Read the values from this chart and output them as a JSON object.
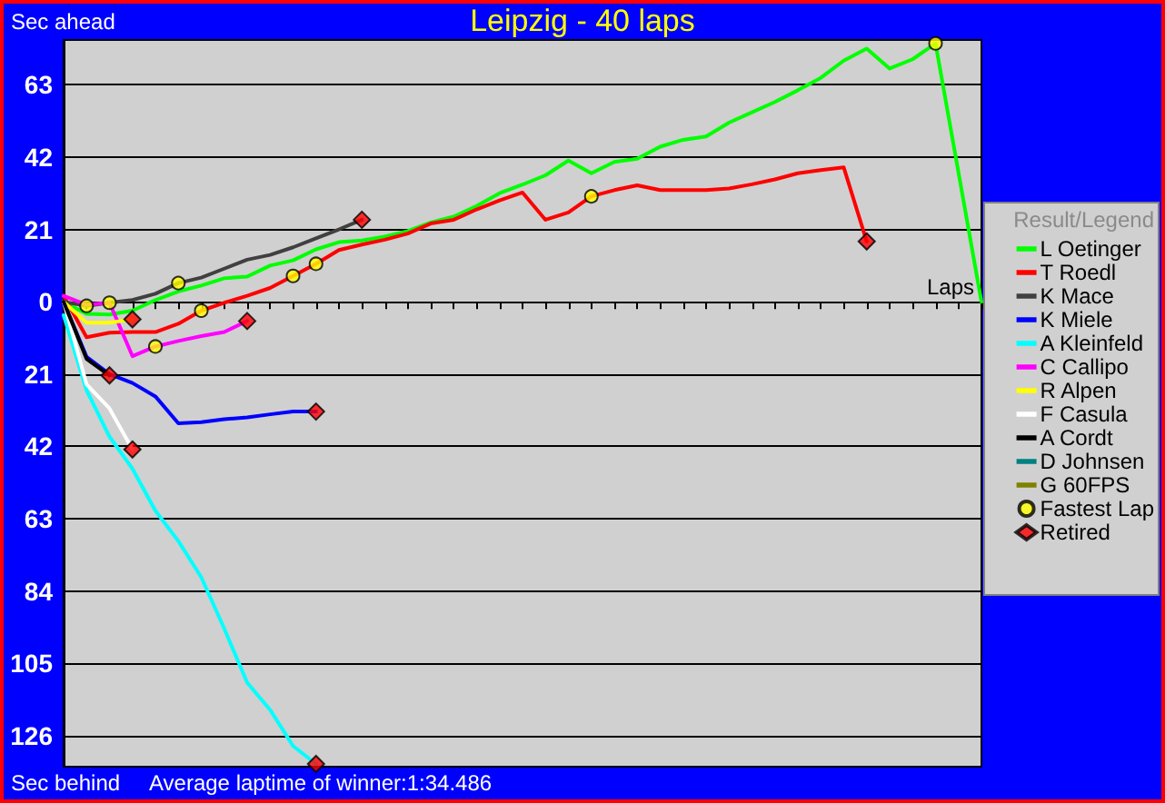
{
  "chart_data": {
    "type": "line",
    "title": "Leipzig - 40 laps",
    "ylabel": "Sec ahead",
    "xlabel": "Laps",
    "legend_title": "Result/Legend",
    "annotations": [
      "Sec behind",
      "Average laptime of winner:1:34.486"
    ],
    "categories": [
      null,
      null,
      null,
      null,
      null,
      null,
      null,
      null,
      null,
      null,
      null,
      null,
      null,
      null,
      null,
      null,
      null,
      null,
      null,
      null,
      null,
      null,
      null,
      null,
      null,
      null,
      null,
      null,
      null,
      null,
      null,
      null,
      null,
      null,
      null,
      null,
      null,
      null,
      null,
      null,
      null
    ],
    "ylim": [
      -135,
      76
    ],
    "yticks": [
      63,
      42,
      21,
      0,
      {
        "value": -21,
        "label": "21"
      },
      {
        "value": -42,
        "label": "42"
      },
      {
        "value": -63,
        "label": "63"
      },
      {
        "value": -84,
        "label": "84"
      },
      {
        "value": -105,
        "label": "105"
      },
      {
        "value": -126,
        "label": "126"
      }
    ],
    "tick_labels": "y",
    "grid": "y",
    "legend": "right",
    "marker": "none",
    "series": [
      {
        "name": "L Oetinger",
        "color": "#00ff00",
        "values": [
          0,
          -3.5,
          -3.7,
          -2.6,
          0.5,
          3,
          4.7,
          6.8,
          7.3,
          10.5,
          12,
          15.2,
          17.3,
          17.8,
          18.9,
          20.5,
          23,
          24.7,
          27.8,
          31.5,
          34,
          36.7,
          41,
          37.3,
          40.6,
          41.5,
          45,
          47,
          48,
          52,
          55,
          58,
          61.4,
          65,
          70,
          73.5,
          67.7,
          70.4,
          75,
          37.5,
          0
        ]
      },
      {
        "name": "T Roedl",
        "color": "#ff0000",
        "values": [
          1.7,
          -10.3,
          -9,
          -8.8,
          -8.8,
          -6.4,
          -2.6,
          -0.3,
          1.7,
          4,
          7.5,
          11,
          15,
          16.6,
          18,
          19.8,
          22.7,
          23.8,
          26.8,
          29.4,
          31.7,
          23.8,
          25.9,
          30.6,
          32.4,
          33.8,
          32.4,
          32.4,
          32.4,
          32.9,
          34.1,
          35.5,
          37.3,
          38.2,
          39,
          17.5,
          null,
          null,
          null,
          null,
          null
        ]
      },
      {
        "name": "K Mace",
        "color": "#404040",
        "values": [
          0,
          -1.2,
          -0.3,
          0.5,
          2.3,
          5.4,
          7,
          9.6,
          12.2,
          13.6,
          15.8,
          18.4,
          21,
          23.8,
          null,
          null,
          null,
          null,
          null,
          null,
          null,
          null,
          null,
          null,
          null,
          null,
          null,
          null,
          null,
          null,
          null,
          null,
          null,
          null,
          null,
          null,
          null,
          null,
          null,
          null,
          null
        ]
      },
      {
        "name": "K Miele",
        "color": "#0000ff",
        "values": [
          0,
          -16,
          -21,
          -23.6,
          -27.5,
          -35.3,
          -35,
          -34.1,
          -33.6,
          -32.7,
          -31.9,
          -31.9,
          null,
          null,
          null,
          null,
          null,
          null,
          null,
          null,
          null,
          null,
          null,
          null,
          null,
          null,
          null,
          null,
          null,
          null,
          null,
          null,
          null,
          null,
          null,
          null,
          null,
          null,
          null,
          null,
          null
        ]
      },
      {
        "name": "A Kleinfeld",
        "color": "#00ffff",
        "values": [
          -3.9,
          -25.7,
          -39.2,
          -48.5,
          -60.7,
          -69.5,
          -80,
          -94.9,
          -110.6,
          -118.5,
          -129,
          -134.2,
          null,
          null,
          null,
          null,
          null,
          null,
          null,
          null,
          null,
          null,
          null,
          null,
          null,
          null,
          null,
          null,
          null,
          null,
          null,
          null,
          null,
          null,
          null,
          null,
          null,
          null,
          null,
          null,
          null
        ]
      },
      {
        "name": "C Callipo",
        "color": "#ff00ff",
        "values": [
          1.7,
          -0.9,
          -0.3,
          -15.8,
          -13,
          -11.4,
          -10,
          -8.8,
          -5.6,
          null,
          null,
          null,
          null,
          null,
          null,
          null,
          null,
          null,
          null,
          null,
          null,
          null,
          null,
          null,
          null,
          null,
          null,
          null,
          null,
          null,
          null,
          null,
          null,
          null,
          null,
          null,
          null,
          null,
          null,
          null,
          null
        ]
      },
      {
        "name": "R Alpen",
        "color": "#ffff00",
        "values": [
          0,
          -6.1,
          -6.1,
          -5.1,
          null,
          null,
          null,
          null,
          null,
          null,
          null,
          null,
          null,
          null,
          null,
          null,
          null,
          null,
          null,
          null,
          null,
          null,
          null,
          null,
          null,
          null,
          null,
          null,
          null,
          null,
          null,
          null,
          null,
          null,
          null,
          null,
          null,
          null,
          null,
          null,
          null
        ]
      },
      {
        "name": "F Casula",
        "color": "#ffffff",
        "values": [
          0,
          -24,
          -31,
          -42.9,
          null,
          null,
          null,
          null,
          null,
          null,
          null,
          null,
          null,
          null,
          null,
          null,
          null,
          null,
          null,
          null,
          null,
          null,
          null,
          null,
          null,
          null,
          null,
          null,
          null,
          null,
          null,
          null,
          null,
          null,
          null,
          null,
          null,
          null,
          null,
          null,
          null
        ]
      },
      {
        "name": "A Cordt",
        "color": "#000000",
        "values": [
          0,
          -16.6,
          -21.4,
          null,
          null,
          null,
          null,
          null,
          null,
          null,
          null,
          null,
          null,
          null,
          null,
          null,
          null,
          null,
          null,
          null,
          null,
          null,
          null,
          null,
          null,
          null,
          null,
          null,
          null,
          null,
          null,
          null,
          null,
          null,
          null,
          null,
          null,
          null,
          null,
          null,
          null
        ]
      },
      {
        "name": "D Johnsen",
        "color": "#008080",
        "values": [
          null,
          null,
          null,
          null,
          null,
          null,
          null,
          null,
          null,
          null,
          null,
          null,
          null,
          null,
          null,
          null,
          null,
          null,
          null,
          null,
          null,
          null,
          null,
          null,
          null,
          null,
          null,
          null,
          null,
          null,
          null,
          null,
          null,
          null,
          null,
          null,
          null,
          null,
          null,
          null,
          null
        ]
      },
      {
        "name": "G 60FPS",
        "color": "#808000",
        "values": [
          null,
          null,
          null,
          null,
          null,
          null,
          null,
          null,
          null,
          null,
          null,
          null,
          null,
          null,
          null,
          null,
          null,
          null,
          null,
          null,
          null,
          null,
          null,
          null,
          null,
          null,
          null,
          null,
          null,
          null,
          null,
          null,
          null,
          null,
          null,
          null,
          null,
          null,
          null,
          null,
          null
        ]
      },
      {
        "name": "Fastest Lap",
        "type": "scatter",
        "marker": "circle",
        "color": "#ffff00",
        "values": [
          null,
          -1.2,
          -0.3,
          null,
          -13,
          5.4,
          -2.6,
          null,
          null,
          null,
          7.5,
          11,
          null,
          null,
          null,
          null,
          null,
          null,
          null,
          null,
          null,
          null,
          null,
          30.6,
          null,
          null,
          null,
          null,
          null,
          null,
          null,
          null,
          null,
          null,
          null,
          null,
          null,
          null,
          75,
          null,
          null
        ]
      },
      {
        "name": "Retired",
        "type": "scatter",
        "marker": "diamond",
        "color": "#ff0000",
        "values": [
          null,
          null,
          -21.4,
          -5.1,
          null,
          null,
          null,
          null,
          -5.6,
          null,
          null,
          -31.9,
          null,
          23.8,
          null,
          null,
          null,
          null,
          null,
          null,
          null,
          null,
          null,
          null,
          null,
          null,
          null,
          null,
          null,
          null,
          null,
          null,
          null,
          null,
          null,
          17.5,
          null,
          null,
          null,
          null,
          null
        ]
      },
      {
        "type": "scatter",
        "marker": "diamond",
        "color": "#ff0000",
        "values": [
          null,
          null,
          null,
          -42.9,
          null,
          null,
          null,
          null,
          null,
          null,
          null,
          -134.2,
          null,
          null,
          null,
          null,
          null,
          null,
          null,
          null,
          null,
          null,
          null,
          null,
          null,
          null,
          null,
          null,
          null,
          null,
          null,
          null,
          null,
          null,
          null,
          null,
          null,
          null,
          null,
          null,
          null
        ]
      }
    ]
  }
}
